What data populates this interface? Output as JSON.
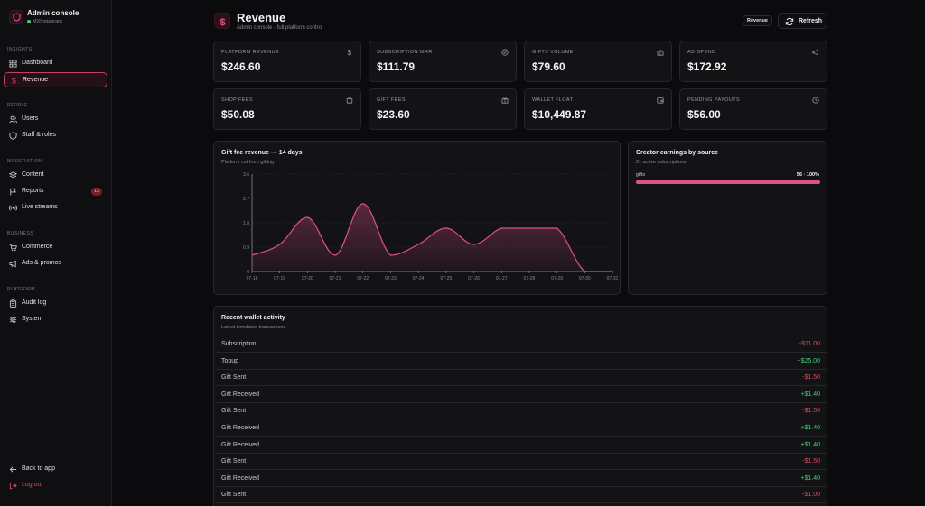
{
  "brand": {
    "title": "Admin console",
    "subtitle": "MXInstagram"
  },
  "sidebar": {
    "sections": [
      {
        "label": "INSIGHTS"
      },
      {
        "label": "PEOPLE"
      },
      {
        "label": "MODERATION"
      },
      {
        "label": "BUSINESS"
      },
      {
        "label": "PLATFORM"
      }
    ],
    "items": [
      {
        "label": "Dashboard",
        "icon": "grid-icon"
      },
      {
        "label": "Revenue",
        "icon": "dollar-icon",
        "active": true
      },
      {
        "label": "Users",
        "icon": "users-icon"
      },
      {
        "label": "Staff & roles",
        "icon": "shield-icon"
      },
      {
        "label": "Content",
        "icon": "layers-icon"
      },
      {
        "label": "Reports",
        "icon": "flag-icon",
        "badge": "13"
      },
      {
        "label": "Live streams",
        "icon": "broadcast-icon"
      },
      {
        "label": "Commerce",
        "icon": "cart-icon"
      },
      {
        "label": "Ads & promos",
        "icon": "megaphone-icon"
      },
      {
        "label": "Audit log",
        "icon": "clipboard-icon"
      },
      {
        "label": "System",
        "icon": "sliders-icon"
      }
    ],
    "back": "Back to app",
    "logout": "Log out"
  },
  "header": {
    "title": "Revenue",
    "subtitle": "Admin console · full platform control",
    "pill": "Revenue",
    "refresh": "Refresh"
  },
  "stats": [
    {
      "label": "PLATFORM REVENUE",
      "value": "$246.60",
      "icon": "dollar-icon"
    },
    {
      "label": "SUBSCRIPTION MRR",
      "value": "$111.79",
      "icon": "check-circle-icon"
    },
    {
      "label": "GIFTS VOLUME",
      "value": "$79.60",
      "icon": "gift-icon"
    },
    {
      "label": "AD SPEND",
      "value": "$172.92",
      "icon": "megaphone-icon"
    },
    {
      "label": "SHOP FEES",
      "value": "$50.08",
      "icon": "bag-icon"
    },
    {
      "label": "GIFT FEES",
      "value": "$23.60",
      "icon": "gift-icon"
    },
    {
      "label": "WALLET FLOAT",
      "value": "$10,449.87",
      "icon": "wallet-icon"
    },
    {
      "label": "PENDING PAYOUTS",
      "value": "$56.00",
      "icon": "clock-icon"
    }
  ],
  "gift_chart": {
    "title": "Gift fee revenue — 14 days",
    "subtitle": "Platform cut from gifting"
  },
  "chart_data": {
    "type": "area",
    "title": "Gift fee revenue — 14 days",
    "subtitle": "Platform cut from gifting",
    "x": [
      "07-18",
      "07-19",
      "07-20",
      "07-21",
      "07-22",
      "07-23",
      "07-24",
      "07-25",
      "07-26",
      "07-27",
      "07-28",
      "07-29",
      "07-30",
      "07-31"
    ],
    "values": [
      0.6,
      1.0,
      2.0,
      0.6,
      2.5,
      0.6,
      1.0,
      1.6,
      1.0,
      1.6,
      1.6,
      1.6,
      0,
      0
    ],
    "yticks": [
      "0",
      "0.9",
      "1.8",
      "2.7",
      "3.6"
    ],
    "ylim": [
      0,
      3.6
    ],
    "grid": true,
    "color": "#e0508a"
  },
  "earnings": {
    "title": "Creator earnings by source",
    "subtitle": "21 active subscriptions",
    "rows": [
      {
        "label": "gifts",
        "value": "56 · 100%",
        "fraction": 1.0
      }
    ]
  },
  "wallet": {
    "title": "Recent wallet activity",
    "subtitle": "Latest simulated transactions",
    "rows": [
      {
        "type": "Subscription",
        "amount": "-$11.00",
        "sign": "neg"
      },
      {
        "type": "Topup",
        "amount": "+$25.00",
        "sign": "pos"
      },
      {
        "type": "Gift Sent",
        "amount": "-$1.50",
        "sign": "neg"
      },
      {
        "type": "Gift Received",
        "amount": "+$1.40",
        "sign": "pos"
      },
      {
        "type": "Gift Sent",
        "amount": "-$1.50",
        "sign": "neg"
      },
      {
        "type": "Gift Received",
        "amount": "+$1.40",
        "sign": "pos"
      },
      {
        "type": "Gift Received",
        "amount": "+$1.40",
        "sign": "pos"
      },
      {
        "type": "Gift Sent",
        "amount": "-$1.50",
        "sign": "neg"
      },
      {
        "type": "Gift Received",
        "amount": "+$1.40",
        "sign": "pos"
      },
      {
        "type": "Gift Sent",
        "amount": "-$1.00",
        "sign": "neg"
      }
    ]
  }
}
